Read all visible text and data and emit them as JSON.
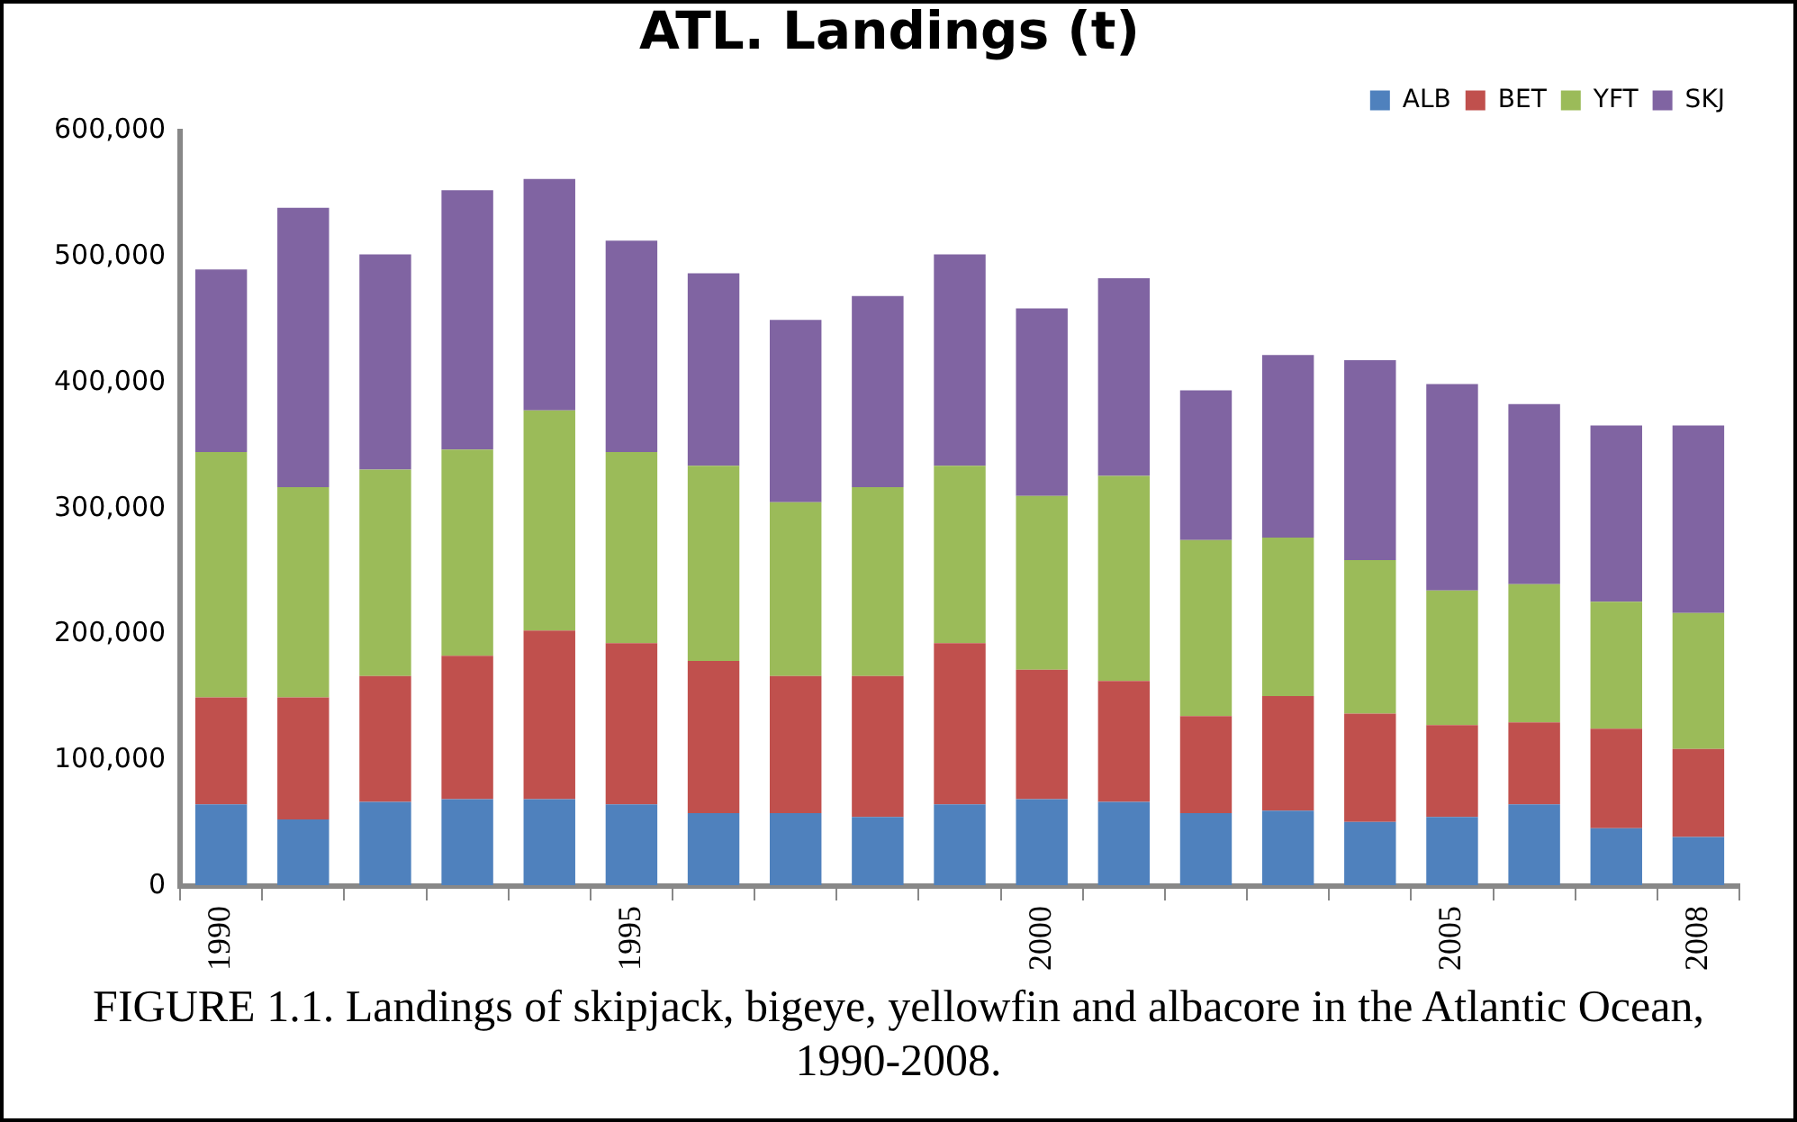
{
  "chart_data": {
    "type": "bar",
    "stacked": true,
    "title": "ATL. Landings (t)",
    "categories": [
      "1990",
      null,
      null,
      null,
      null,
      "1995",
      null,
      null,
      null,
      null,
      "2000",
      null,
      null,
      null,
      null,
      "2005",
      null,
      null,
      "2008"
    ],
    "series": [
      {
        "name": "ALB",
        "color": "#4f81bd",
        "values": [
          65000,
          53000,
          67000,
          69000,
          69000,
          65000,
          58000,
          58000,
          55000,
          65000,
          69000,
          67000,
          58000,
          60000,
          51000,
          55000,
          65000,
          46000,
          39000
        ]
      },
      {
        "name": "BET",
        "color": "#c0504d",
        "values": [
          85000,
          97000,
          100000,
          114000,
          134000,
          128000,
          121000,
          109000,
          112000,
          128000,
          103000,
          96000,
          77000,
          91000,
          86000,
          73000,
          65000,
          79000,
          70000
        ]
      },
      {
        "name": "YFT",
        "color": "#9bbb59",
        "values": [
          195000,
          167000,
          164000,
          164000,
          175000,
          152000,
          155000,
          138000,
          150000,
          141000,
          138000,
          163000,
          140000,
          126000,
          122000,
          107000,
          110000,
          101000,
          108000
        ]
      },
      {
        "name": "SKJ",
        "color": "#8064a2",
        "values": [
          145000,
          222000,
          171000,
          206000,
          184000,
          168000,
          153000,
          145000,
          152000,
          168000,
          149000,
          157000,
          119000,
          145000,
          159000,
          164000,
          143000,
          140000,
          149000
        ]
      }
    ],
    "ylim": [
      0,
      600000
    ],
    "yticks": [
      0,
      {
        "value": 100000,
        "label": "100,000"
      },
      {
        "value": 200000,
        "label": "200,000"
      },
      {
        "value": 300000,
        "label": "300,000"
      },
      {
        "value": 400000,
        "label": "400,000"
      },
      {
        "value": 500000,
        "label": "500,000"
      },
      {
        "value": 600000,
        "label": "600,000"
      }
    ],
    "grid": false,
    "legend": "top right",
    "annotations": [
      "FIGURE 1.1. Landings of skipjack, bigeye, yellowfin and albacore in the Atlantic Ocean, 1990-2008."
    ]
  }
}
